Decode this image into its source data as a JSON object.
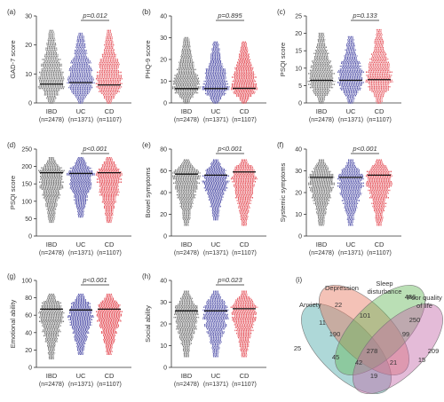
{
  "colors": {
    "IBD": "#555555",
    "UC": "#33339a",
    "CD": "#e0303a",
    "anxiety": "#4ca8a8",
    "depression": "#e6775f",
    "sleep_disturbance": "#66b85c",
    "poor_quality_of_life": "#c468a8"
  },
  "groups": [
    {
      "name": "IBD",
      "n_label": "(n=2478)"
    },
    {
      "name": "UC",
      "n_label": "(n=1371)"
    },
    {
      "name": "CD",
      "n_label": "(n=1107)"
    }
  ],
  "chart_data": [
    {
      "panel_label": "(a)",
      "type": "scatter",
      "subtype": "dot-strip with mean line",
      "ylabel": "GAD-7 score",
      "ylim": [
        0,
        30
      ],
      "yticks": [
        0,
        10,
        20,
        30
      ],
      "categories": [
        "IBD",
        "UC",
        "CD"
      ],
      "p_label": "p=0.012",
      "p_between": [
        "UC",
        "CD"
      ],
      "mean": [
        6.5,
        7.0,
        6.2
      ],
      "range": [
        [
          0,
          25
        ],
        [
          0,
          24
        ],
        [
          0,
          25
        ]
      ]
    },
    {
      "panel_label": "(b)",
      "type": "scatter",
      "subtype": "dot-strip with mean line",
      "ylabel": "PHQ-9 score",
      "ylim": [
        0,
        40
      ],
      "yticks": [
        0,
        10,
        20,
        30,
        40
      ],
      "categories": [
        "IBD",
        "UC",
        "CD"
      ],
      "p_label": "p=0.895",
      "p_between": [
        "UC",
        "CD"
      ],
      "mean": [
        6.6,
        6.6,
        6.7
      ],
      "range": [
        [
          0,
          30
        ],
        [
          0,
          28
        ],
        [
          0,
          28
        ]
      ]
    },
    {
      "panel_label": "(c)",
      "type": "scatter",
      "subtype": "dot-strip with mean line",
      "ylabel": "PSQI score",
      "ylim": [
        0,
        25
      ],
      "yticks": [
        0,
        5,
        10,
        15,
        20,
        25
      ],
      "categories": [
        "IBD",
        "UC",
        "CD"
      ],
      "p_label": "p=0.133",
      "p_between": [
        "UC",
        "CD"
      ],
      "mean": [
        6.5,
        6.5,
        6.7
      ],
      "range": [
        [
          0,
          20
        ],
        [
          0,
          19
        ],
        [
          0,
          21
        ]
      ]
    },
    {
      "panel_label": "(d)",
      "type": "scatter",
      "subtype": "dot-strip with mean line",
      "ylabel": "PSQI score",
      "ylim": [
        0,
        250
      ],
      "yticks": [
        0,
        50,
        100,
        150,
        200,
        250
      ],
      "categories": [
        "IBD",
        "UC",
        "CD"
      ],
      "p_label": "p<0.001",
      "p_between": [
        "UC",
        "CD"
      ],
      "mean": [
        182,
        180,
        182
      ],
      "range": [
        [
          40,
          225
        ],
        [
          55,
          225
        ],
        [
          40,
          225
        ]
      ]
    },
    {
      "panel_label": "(e)",
      "type": "scatter",
      "subtype": "dot-strip with mean line",
      "ylabel": "Bowel symptoms",
      "ylim": [
        0,
        80
      ],
      "yticks": [
        0,
        20,
        40,
        60,
        80
      ],
      "categories": [
        "IBD",
        "UC",
        "CD"
      ],
      "p_label": "p<0.001",
      "p_between": [
        "UC",
        "CD"
      ],
      "mean": [
        57,
        56,
        59
      ],
      "range": [
        [
          10,
          70
        ],
        [
          15,
          70
        ],
        [
          10,
          70
        ]
      ]
    },
    {
      "panel_label": "(f)",
      "type": "scatter",
      "subtype": "dot-strip with mean line",
      "ylabel": "Systemic symptoms",
      "ylim": [
        0,
        40
      ],
      "yticks": [
        0,
        10,
        20,
        30,
        40
      ],
      "categories": [
        "IBD",
        "UC",
        "CD"
      ],
      "p_label": "p<0.001",
      "p_between": [
        "UC",
        "CD"
      ],
      "mean": [
        27,
        27,
        28
      ],
      "range": [
        [
          5,
          35
        ],
        [
          5,
          35
        ],
        [
          5,
          35
        ]
      ]
    },
    {
      "panel_label": "(g)",
      "type": "scatter",
      "subtype": "dot-strip with mean line",
      "ylabel": "Emotional ability",
      "ylim": [
        0,
        100
      ],
      "yticks": [
        0,
        20,
        40,
        60,
        80,
        100
      ],
      "categories": [
        "IBD",
        "UC",
        "CD"
      ],
      "p_label": "p<0.001",
      "p_between": [
        "UC",
        "CD"
      ],
      "mean": [
        67,
        66,
        67
      ],
      "range": [
        [
          10,
          84
        ],
        [
          15,
          84
        ],
        [
          15,
          84
        ]
      ]
    },
    {
      "panel_label": "(h)",
      "type": "scatter",
      "subtype": "dot-strip with mean line",
      "ylabel": "Social ability",
      "ylim": [
        0,
        40
      ],
      "yticks": [
        0,
        10,
        20,
        30,
        40
      ],
      "categories": [
        "IBD",
        "UC",
        "CD"
      ],
      "p_label": "p=0.023",
      "p_between": [
        "UC",
        "CD"
      ],
      "mean": [
        26,
        26,
        27
      ],
      "range": [
        [
          5,
          35
        ],
        [
          5,
          35
        ],
        [
          5,
          35
        ]
      ]
    },
    {
      "panel_label": "(i)",
      "type": "venn",
      "sets": [
        "Anxiety",
        "Depression",
        "Sleep disturbance",
        "Poor quality of life"
      ],
      "regions": [
        {
          "sets": [
            "Depression"
          ],
          "value": 22
        },
        {
          "sets": [
            "Sleep disturbance"
          ],
          "value": 486
        },
        {
          "sets": [
            "Anxiety"
          ],
          "value": 25
        },
        {
          "sets": [
            "Poor quality of life"
          ],
          "value": 209
        },
        {
          "sets": [
            "Anxiety",
            "Depression"
          ],
          "value": 11
        },
        {
          "sets": [
            "Depression",
            "Sleep disturbance"
          ],
          "value": 101
        },
        {
          "sets": [
            "Sleep disturbance",
            "Poor quality of life"
          ],
          "value": 250
        },
        {
          "sets": [
            "Anxiety",
            "Depression",
            "Sleep disturbance"
          ],
          "value": 190
        },
        {
          "sets": [
            "Depression",
            "Sleep disturbance",
            "Poor quality of life"
          ],
          "value": 99
        },
        {
          "sets": [
            "Anxiety",
            "Depression",
            "Sleep disturbance",
            "Poor quality of life"
          ],
          "value": 278
        },
        {
          "sets": [
            "Anxiety",
            "Sleep disturbance"
          ],
          "value": 45
        },
        {
          "sets": [
            "Depression",
            "Poor quality of life"
          ],
          "value": 15
        },
        {
          "sets": [
            "Anxiety",
            "Sleep disturbance",
            "Poor quality of life"
          ],
          "value": 42
        },
        {
          "sets": [
            "Anxiety",
            "Depression",
            "Poor quality of life"
          ],
          "value": 21
        },
        {
          "sets": [
            "Anxiety",
            "Poor quality of life"
          ],
          "value": 19
        }
      ]
    }
  ]
}
